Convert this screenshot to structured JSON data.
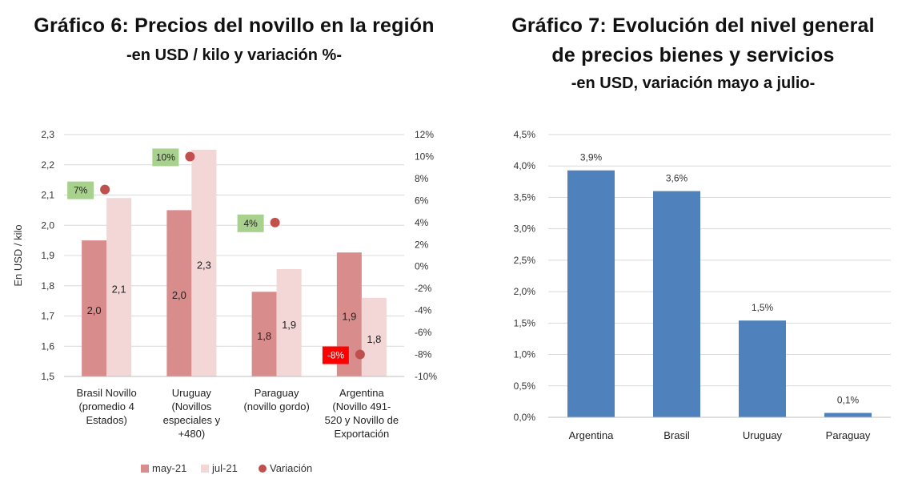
{
  "chart6": {
    "title": "Gráfico 6: Precios del novillo en la región",
    "subtitle": "-en USD / kilo y variación %-"
  },
  "chart7": {
    "title_line1": "Gráfico 7: Evolución del nivel general",
    "title_line2": "de precios bienes y servicios",
    "subtitle": "-en USD, variación mayo a julio-"
  },
  "chart_data": [
    {
      "type": "bar",
      "title": "Gráfico 6: Precios del novillo en la región",
      "subtitle": "-en USD / kilo y variación %-",
      "ylabel": "En USD / kilo",
      "ylim": [
        1.5,
        2.3
      ],
      "yticks": [
        "1,5",
        "1,6",
        "1,7",
        "1,8",
        "1,9",
        "2,0",
        "2,1",
        "2,2",
        "2,3"
      ],
      "y2lim": [
        -10,
        12
      ],
      "y2ticks": [
        "-10%",
        "-8%",
        "-6%",
        "-4%",
        "-2%",
        "0%",
        "2%",
        "4%",
        "6%",
        "8%",
        "10%",
        "12%"
      ],
      "categories": [
        [
          "Brasil Novillo",
          "(promedio 4",
          "Estados)"
        ],
        [
          "Uruguay",
          "(Novillos",
          "especiales y",
          "+480)"
        ],
        [
          "Paraguay",
          "(novillo gordo)"
        ],
        [
          "Argentina",
          "(Novillo 491-",
          "520 y Novillo de",
          "Exportación"
        ]
      ],
      "series": [
        {
          "name": "may-21",
          "color": "#d98c8c",
          "values": [
            1.95,
            2.05,
            1.78,
            1.91
          ],
          "labels": [
            "2,0",
            "2,0",
            "1,8",
            "1,9"
          ]
        },
        {
          "name": "jul-21",
          "color": "#f3d6d6",
          "values": [
            2.09,
            2.25,
            1.855,
            1.76
          ],
          "labels": [
            "2,1",
            "2,3",
            "1,9",
            "1,8"
          ]
        }
      ],
      "variation": {
        "name": "Variación",
        "color": "#c0504d",
        "values": [
          7,
          10,
          4,
          -8
        ],
        "labels": [
          "7%",
          "10%",
          "4%",
          "-8%"
        ],
        "label_colors": [
          "#a9d18e",
          "#a9d18e",
          "#a9d18e",
          "#ff0000"
        ]
      },
      "grid": true,
      "legend": "bottom"
    },
    {
      "type": "bar",
      "title": "Gráfico 7: Evolución del nivel general de precios bienes y servicios",
      "subtitle": "-en USD, variación mayo a julio-",
      "categories": [
        "Argentina",
        "Brasil",
        "Uruguay",
        "Paraguay"
      ],
      "values": [
        3.93,
        3.6,
        1.54,
        0.07
      ],
      "labels": [
        "3,9%",
        "3,6%",
        "1,5%",
        "0,1%"
      ],
      "color": "#4f81bd",
      "ylim": [
        0,
        4.5
      ],
      "yticks": [
        "0,0%",
        "0,5%",
        "1,0%",
        "1,5%",
        "2,0%",
        "2,5%",
        "3,0%",
        "3,5%",
        "4,0%",
        "4,5%"
      ],
      "grid": true
    }
  ]
}
